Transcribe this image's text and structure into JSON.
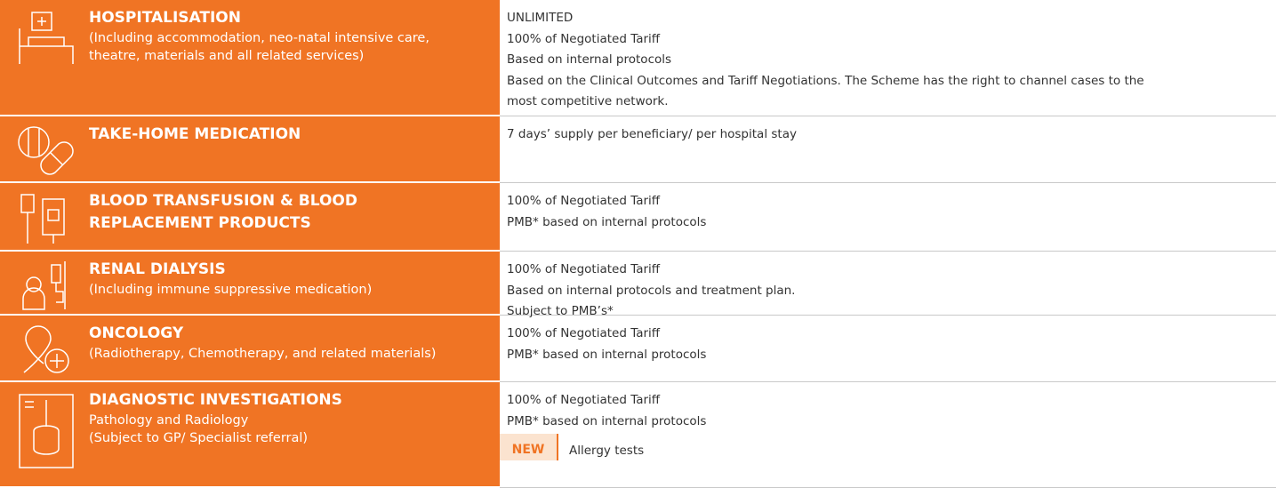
{
  "rows": [
    {
      "title": [
        "HOSPITALISATION"
      ],
      "subtitle": [
        "(Including accommodation, neo-natal intensive care,",
        "theatre, materials and all related services)"
      ],
      "details": [
        "UNLIMITED",
        "100% of Negotiated Tariff",
        "Based on internal protocols",
        "Based on the Clinical Outcomes and Tariff Negotiations. The Scheme has the right to channel cases to the",
        "most competitive network."
      ]
    },
    {
      "title": [
        "TAKE-HOME MEDICATION"
      ],
      "subtitle": [],
      "details": [
        "7 days’ supply per beneficiary/ per hospital stay"
      ]
    },
    {
      "title": [
        "BLOOD TRANSFUSION & BLOOD",
        "REPLACEMENT PRODUCTS"
      ],
      "subtitle": [],
      "details": [
        "100% of Negotiated Tariff",
        "PMB* based on internal protocols"
      ]
    },
    {
      "title": [
        "RENAL DIALYSIS"
      ],
      "subtitle": [
        "(Including immune suppressive medication)"
      ],
      "details": [
        "100% of Negotiated Tariff",
        "Based on internal protocols and treatment plan.",
        "Subject to PMB’s*"
      ]
    },
    {
      "title": [
        "ONCOLOGY"
      ],
      "subtitle": [
        "(Radiotherapy, Chemotherapy, and related materials)"
      ],
      "details": [
        "100% of Negotiated Tariff",
        "PMB* based on internal protocols"
      ]
    },
    {
      "title": [
        "DIAGNOSTIC INVESTIGATIONS"
      ],
      "subtitle": [
        "Pathology and Radiology",
        "(Subject to GP/ Specialist referral)"
      ],
      "details": [
        "100% of Negotiated Tariff",
        "PMB* based on internal protocols"
      ],
      "badge": "NEW",
      "badge_text": "Allergy tests"
    }
  ]
}
